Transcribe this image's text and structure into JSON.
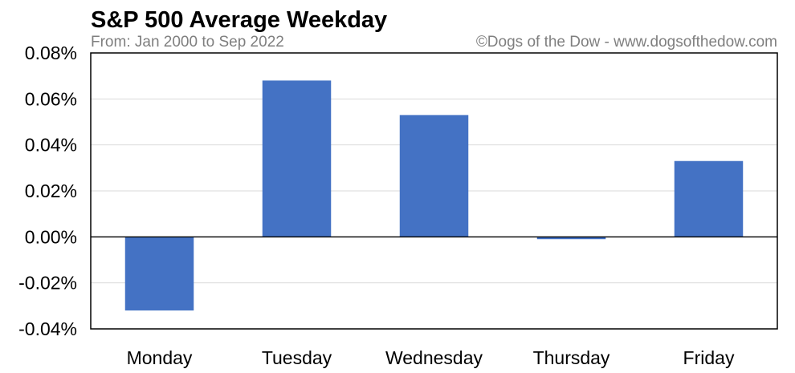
{
  "chart_data": {
    "type": "bar",
    "title": "S&P 500 Average Weekday",
    "subtitle": "From: Jan 2000 to Sep 2022",
    "credit": "©Dogs of the Dow - www.dogsofthedow.com",
    "categories": [
      "Monday",
      "Tuesday",
      "Wednesday",
      "Thursday",
      "Friday"
    ],
    "values": [
      -0.032,
      0.068,
      0.053,
      -0.001,
      0.033
    ],
    "value_unit": "%",
    "ylim": [
      -0.04,
      0.08
    ],
    "yticks": [
      0.08,
      0.06,
      0.04,
      0.02,
      0.0,
      -0.02,
      -0.04
    ],
    "ytick_labels": [
      "0.08%",
      "0.06%",
      "0.04%",
      "0.02%",
      "0.00%",
      "-0.02%",
      "-0.04%"
    ],
    "grid": true,
    "legend": "none",
    "bar_color": "#4472c4",
    "xlabel": "",
    "ylabel": ""
  }
}
